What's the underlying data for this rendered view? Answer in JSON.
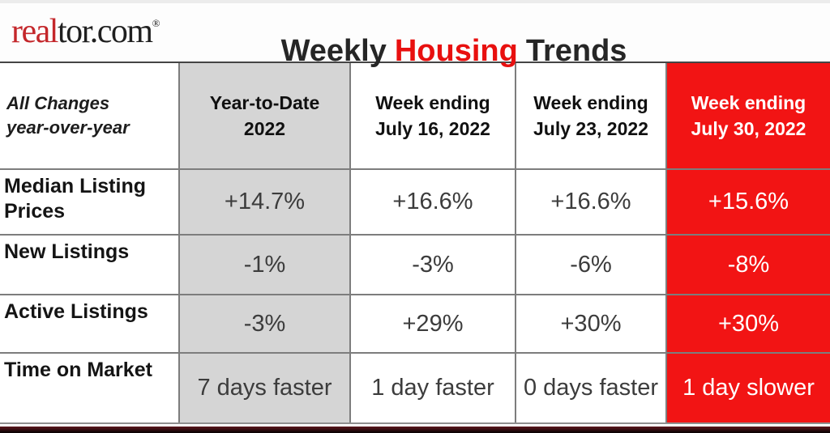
{
  "brand": {
    "logo_red_part": "real",
    "logo_black_part": "tor.com",
    "registered_mark": "®"
  },
  "title": {
    "part1": "Weekly",
    "highlight": "Housing",
    "part2": "Trends"
  },
  "table": {
    "corner_label": "All Changes\nyear-over-year",
    "columns": [
      {
        "label": "Year-to-Date\n2022"
      },
      {
        "label": "Week ending\nJuly 16, 2022"
      },
      {
        "label": "Week ending\nJuly 23, 2022"
      },
      {
        "label": "Week ending\nJuly 30, 2022"
      }
    ],
    "rows": [
      {
        "label": "Median Listing\nPrices",
        "values": [
          "+14.7%",
          "+16.6%",
          "+16.6%",
          "+15.6%"
        ]
      },
      {
        "label": "New Listings",
        "values": [
          "-1%",
          "-3%",
          "-6%",
          "-8%"
        ]
      },
      {
        "label": "Active Listings",
        "values": [
          "-3%",
          "+29%",
          "+30%",
          "+30%"
        ]
      },
      {
        "label": "Time on Market",
        "values": [
          "7 days faster",
          "1 day faster",
          "0 days faster",
          "1 day slower"
        ]
      }
    ]
  },
  "colors": {
    "accent_red": "#f21414",
    "title_red": "#e8100f",
    "logo_red": "#c4272b",
    "cell_gray": "#d5d5d5",
    "grid_line": "#7d7d7d",
    "footer_maroon": "#3c0e12"
  },
  "chart_data": {
    "type": "table",
    "title": "Weekly Housing Trends",
    "row_header": "All Changes year-over-year",
    "columns": [
      "Year-to-Date 2022",
      "Week ending July 16, 2022",
      "Week ending July 23, 2022",
      "Week ending July 30, 2022"
    ],
    "rows": [
      {
        "metric": "Median Listing Prices",
        "values": [
          "+14.7%",
          "+16.6%",
          "+16.6%",
          "+15.6%"
        ]
      },
      {
        "metric": "New Listings",
        "values": [
          "-1%",
          "-3%",
          "-6%",
          "-8%"
        ]
      },
      {
        "metric": "Active Listings",
        "values": [
          "-3%",
          "+29%",
          "+30%",
          "+30%"
        ]
      },
      {
        "metric": "Time on Market",
        "values": [
          "7 days faster",
          "1 day faster",
          "0 days faster",
          "1 day slower"
        ]
      }
    ],
    "highlight_column": "Week ending July 30, 2022",
    "legend_position": "none",
    "grid": true
  }
}
